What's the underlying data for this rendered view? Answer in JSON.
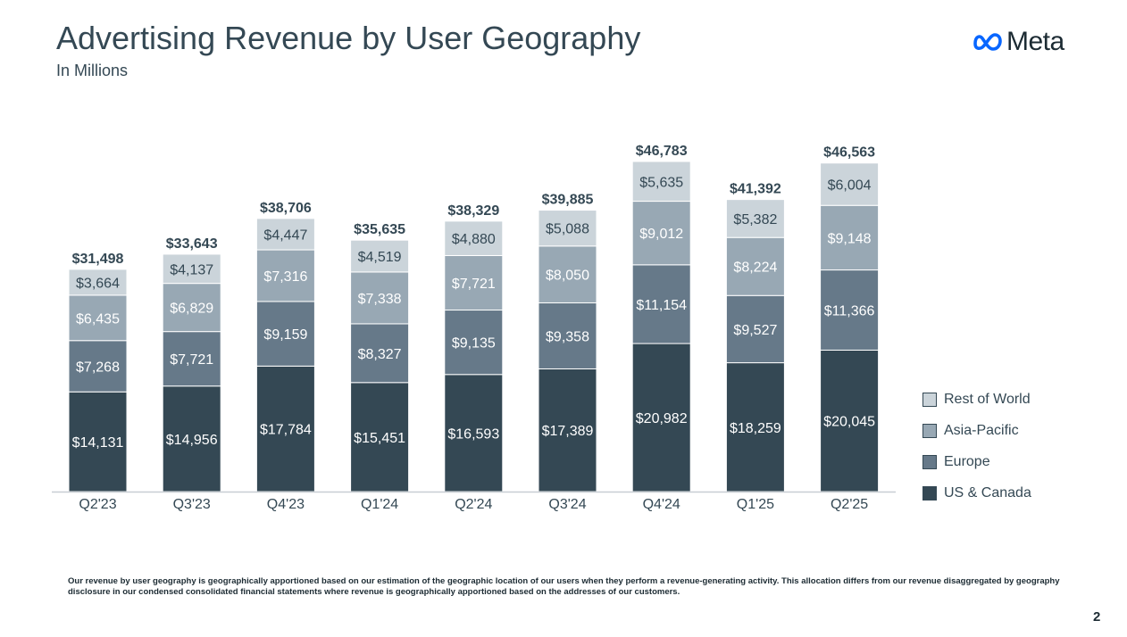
{
  "page": {
    "title": "Advertising Revenue by User Geography",
    "subtitle": "In Millions",
    "logo_text": "Meta",
    "footnote": "Our revenue by user geography is geographically apportioned based on our estimation of the geographic location of our users when they perform a revenue-generating activity. This allocation differs from our revenue disaggregated by geography disclosure in our condensed consolidated financial statements where revenue is geographically apportioned based on the addresses of our customers.",
    "page_number": "2"
  },
  "chart_data": {
    "type": "bar",
    "stacked": true,
    "categories": [
      "Q2'23",
      "Q3'23",
      "Q4'23",
      "Q1'24",
      "Q2'24",
      "Q3'24",
      "Q4'24",
      "Q1'25",
      "Q2'25"
    ],
    "series": [
      {
        "name": "US & Canada",
        "color": "#344854",
        "values": [
          14131,
          14956,
          17784,
          15451,
          16593,
          17389,
          20982,
          18259,
          20045
        ],
        "labels": [
          "$14,131",
          "$14,956",
          "$17,784",
          "$15,451",
          "$16,593",
          "$17,389",
          "$20,982",
          "$18,259",
          "$20,045"
        ]
      },
      {
        "name": "Europe",
        "color": "#667989",
        "values": [
          7268,
          7721,
          9159,
          8327,
          9135,
          9358,
          11154,
          9527,
          11366
        ],
        "labels": [
          "$7,268",
          "$7,721",
          "$9,159",
          "$8,327",
          "$9,135",
          "$9,358",
          "$11,154",
          "$9,527",
          "$11,366"
        ]
      },
      {
        "name": "Asia-Pacific",
        "color": "#98a8b4",
        "values": [
          6435,
          6829,
          7316,
          7338,
          7721,
          8050,
          9012,
          8224,
          9148
        ],
        "labels": [
          "$6,435",
          "$6,829",
          "$7,316",
          "$7,338",
          "$7,721",
          "$8,050",
          "$9,012",
          "$8,224",
          "$9,148"
        ]
      },
      {
        "name": "Rest of World",
        "color": "#cbd4da",
        "values": [
          3664,
          4137,
          4447,
          4519,
          4880,
          5088,
          5635,
          5382,
          6004
        ],
        "labels": [
          "$3,664",
          "$4,137",
          "$4,447",
          "$4,519",
          "$4,880",
          "$5,088",
          "$5,635",
          "$5,382",
          "$6,004"
        ]
      }
    ],
    "totals": [
      31498,
      33643,
      38706,
      35635,
      38329,
      39885,
      46783,
      41392,
      46563
    ],
    "total_labels": [
      "$31,498",
      "$33,643",
      "$38,706",
      "$35,635",
      "$38,329",
      "$39,885",
      "$46,783",
      "$41,392",
      "$46,563"
    ],
    "legend_placement": "right",
    "legend_order": [
      "Rest of World",
      "Asia-Pacific",
      "Europe",
      "US & Canada"
    ],
    "grid": false,
    "ylim": [
      0,
      46783
    ]
  }
}
